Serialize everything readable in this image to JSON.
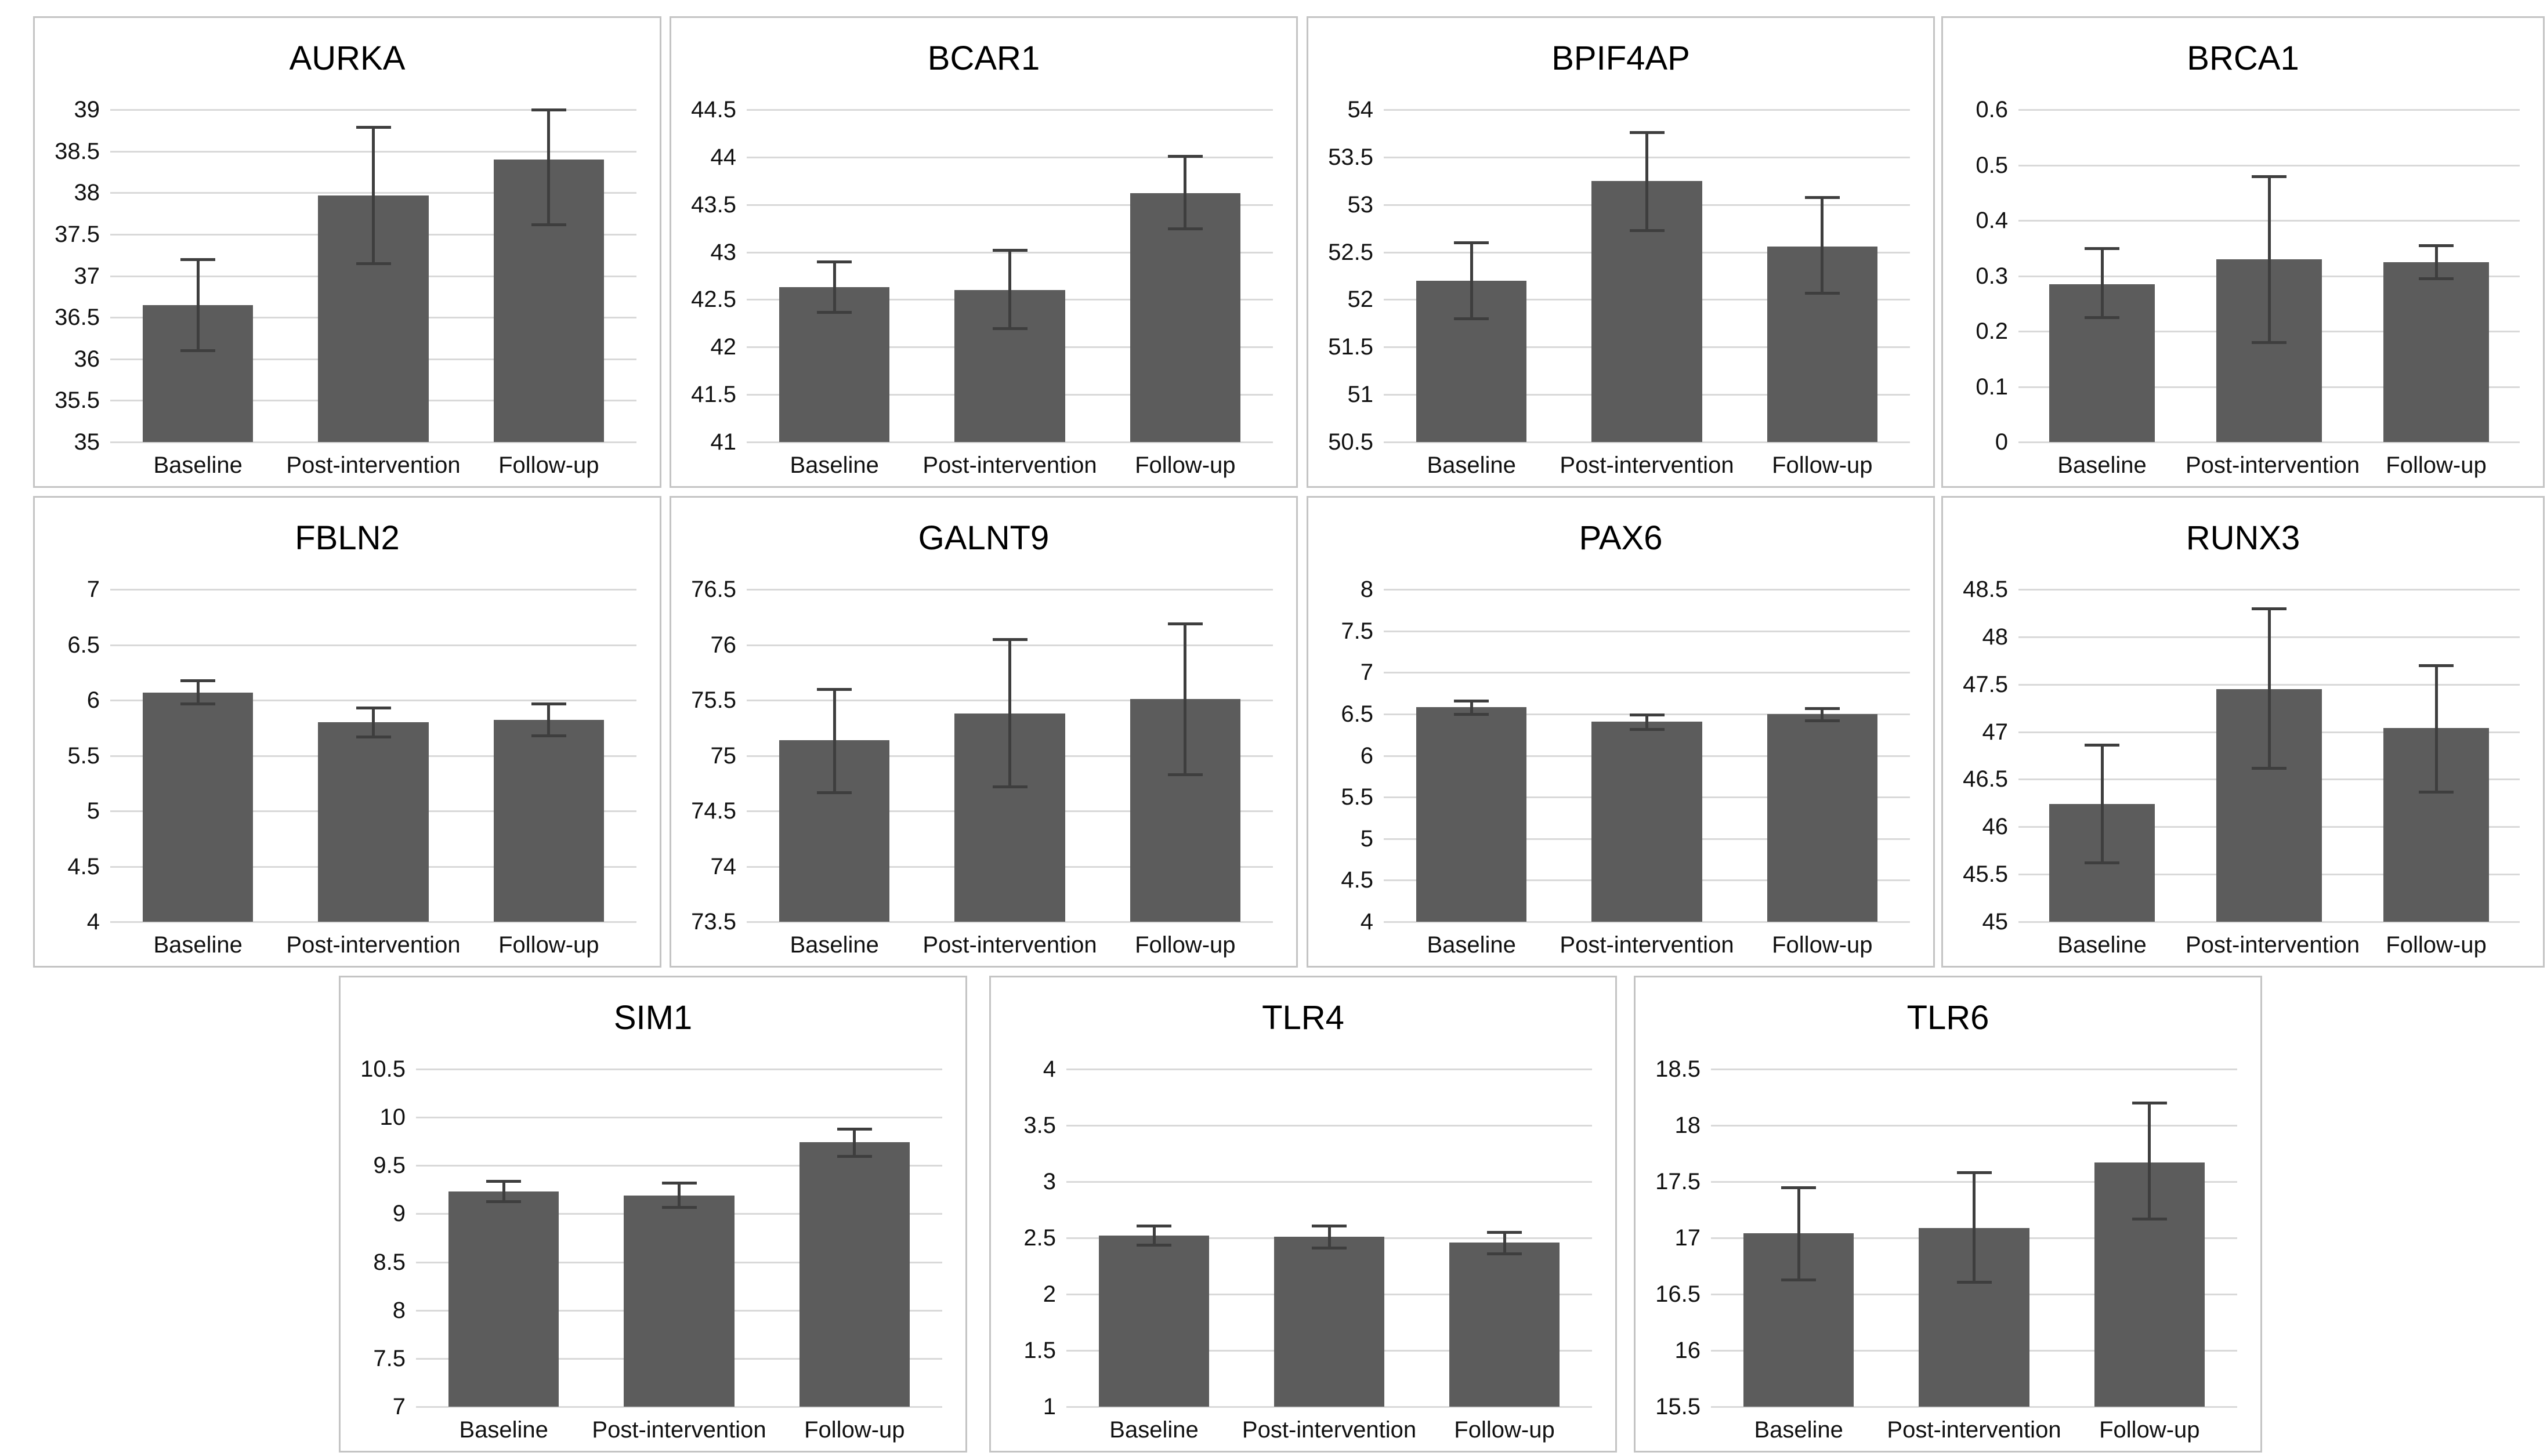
{
  "categories": [
    "Baseline",
    "Post-intervention",
    "Follow-up"
  ],
  "colors": {
    "bar": "#5c5c5c",
    "error_bar": "#3e3e3e",
    "gridline": "#d9d9d9",
    "panel_border": "#c4c4c4",
    "text": "#111111"
  },
  "chart_data": [
    {
      "type": "bar",
      "title": "AURKA",
      "ylim": [
        35,
        39
      ],
      "ytick_step": 0.5,
      "grid": true,
      "yticks": [
        "39",
        "38.5",
        "38",
        "37.5",
        "37",
        "36.5",
        "36",
        "35.5",
        "35"
      ],
      "values": [
        36.65,
        37.97,
        38.4
      ],
      "error_low": [
        36.1,
        37.15,
        37.62
      ],
      "error_high": [
        37.2,
        38.79,
        39.0
      ]
    },
    {
      "type": "bar",
      "title": "BCAR1",
      "ylim": [
        41,
        44.5
      ],
      "ytick_step": 0.5,
      "grid": true,
      "yticks": [
        "44.5",
        "44",
        "43.5",
        "43",
        "42.5",
        "42",
        "41.5",
        "41"
      ],
      "values": [
        42.63,
        42.6,
        43.62
      ],
      "error_low": [
        42.37,
        42.2,
        43.25
      ],
      "error_high": [
        42.9,
        43.02,
        44.01
      ]
    },
    {
      "type": "bar",
      "title": "BPIF4AP",
      "ylim": [
        50.5,
        54
      ],
      "ytick_step": 0.5,
      "grid": true,
      "yticks": [
        "54",
        "53.5",
        "53",
        "52.5",
        "52",
        "51.5",
        "51",
        "50.5"
      ],
      "values": [
        52.2,
        53.25,
        52.56
      ],
      "error_low": [
        51.8,
        52.73,
        52.07
      ],
      "error_high": [
        52.6,
        53.76,
        53.08
      ]
    },
    {
      "type": "bar",
      "title": "BRCA1",
      "ylim": [
        0,
        0.6
      ],
      "ytick_step": 0.1,
      "grid": true,
      "yticks": [
        "0.6",
        "0.5",
        "0.4",
        "0.3",
        "0.2",
        "0.1",
        "0"
      ],
      "values": [
        0.285,
        0.33,
        0.325
      ],
      "error_low": [
        0.225,
        0.18,
        0.295
      ],
      "error_high": [
        0.35,
        0.48,
        0.355
      ]
    },
    {
      "type": "bar",
      "title": "FBLN2",
      "ylim": [
        4,
        7
      ],
      "ytick_step": 0.5,
      "grid": true,
      "yticks": [
        "7",
        "6.5",
        "6",
        "5.5",
        "5",
        "4.5",
        "4"
      ],
      "values": [
        6.07,
        5.8,
        5.82
      ],
      "error_low": [
        5.97,
        5.67,
        5.68
      ],
      "error_high": [
        6.18,
        5.93,
        5.97
      ]
    },
    {
      "type": "bar",
      "title": "GALNT9",
      "ylim": [
        73.5,
        76.5
      ],
      "ytick_step": 0.5,
      "grid": true,
      "yticks": [
        "76.5",
        "76",
        "75.5",
        "75",
        "74.5",
        "74",
        "73.5"
      ],
      "values": [
        75.14,
        75.38,
        75.51
      ],
      "error_low": [
        74.67,
        74.72,
        74.83
      ],
      "error_high": [
        75.6,
        76.05,
        76.19
      ]
    },
    {
      "type": "bar",
      "title": "PAX6",
      "ylim": [
        4,
        8
      ],
      "ytick_step": 0.5,
      "grid": true,
      "yticks": [
        "8",
        "7.5",
        "7",
        "6.5",
        "6",
        "5.5",
        "5",
        "4.5",
        "4"
      ],
      "values": [
        6.58,
        6.41,
        6.5
      ],
      "error_low": [
        6.5,
        6.32,
        6.42
      ],
      "error_high": [
        6.66,
        6.49,
        6.57
      ]
    },
    {
      "type": "bar",
      "title": "RUNX3",
      "ylim": [
        45,
        48.5
      ],
      "ytick_step": 0.5,
      "grid": true,
      "yticks": [
        "48.5",
        "48",
        "47.5",
        "47",
        "46.5",
        "46",
        "45.5",
        "45"
      ],
      "values": [
        46.24,
        47.45,
        47.04
      ],
      "error_low": [
        45.62,
        46.62,
        46.37
      ],
      "error_high": [
        46.86,
        48.3,
        47.7
      ]
    },
    {
      "type": "bar",
      "title": "SIM1",
      "ylim": [
        7,
        10.5
      ],
      "ytick_step": 0.5,
      "grid": true,
      "yticks": [
        "10.5",
        "10",
        "9.5",
        "9",
        "8.5",
        "8",
        "7.5",
        "7"
      ],
      "values": [
        9.23,
        9.19,
        9.74
      ],
      "error_low": [
        9.13,
        9.07,
        9.6
      ],
      "error_high": [
        9.34,
        9.32,
        9.88
      ]
    },
    {
      "type": "bar",
      "title": "TLR4",
      "ylim": [
        1,
        4
      ],
      "ytick_step": 0.5,
      "grid": true,
      "yticks": [
        "4",
        "3.5",
        "3",
        "2.5",
        "2",
        "1.5",
        "1"
      ],
      "values": [
        2.52,
        2.51,
        2.46
      ],
      "error_low": [
        2.44,
        2.41,
        2.36
      ],
      "error_high": [
        2.61,
        2.61,
        2.55
      ]
    },
    {
      "type": "bar",
      "title": "TLR6",
      "ylim": [
        15.5,
        18.5
      ],
      "ytick_step": 0.5,
      "grid": true,
      "yticks": [
        "18.5",
        "18",
        "17.5",
        "17",
        "16.5",
        "16",
        "15.5"
      ],
      "values": [
        17.04,
        17.09,
        17.67
      ],
      "error_low": [
        16.63,
        16.61,
        17.17
      ],
      "error_high": [
        17.45,
        17.58,
        18.2
      ]
    }
  ]
}
